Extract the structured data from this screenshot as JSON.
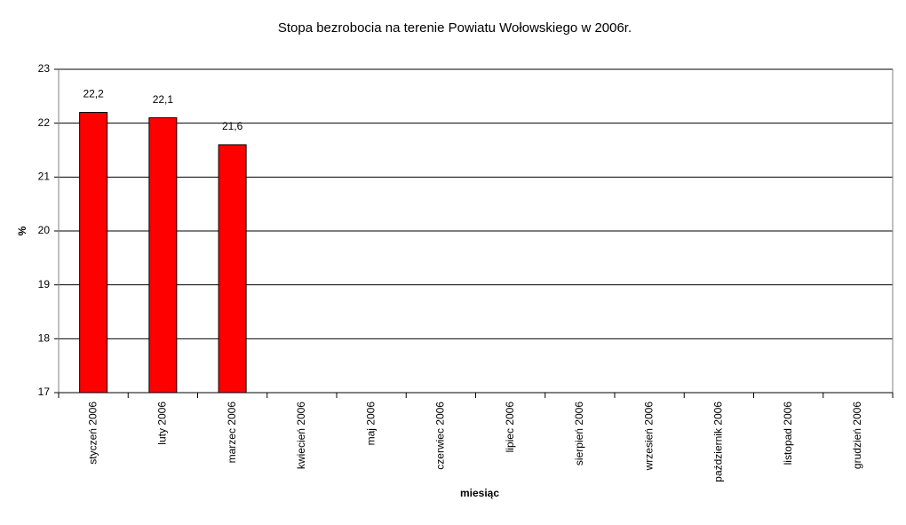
{
  "chart_data": {
    "type": "bar",
    "title": "Stopa bezrobocia na terenie Powiatu Wołowskiego w  2006r.",
    "x_label": "miesiąc",
    "y_label": "%",
    "categories": [
      "styczeń 2006",
      "luty 2006",
      "marzec 2006",
      "kwiecień 2006",
      "maj 2006",
      "czerwiec 2006",
      "lipiec 2006",
      "sierpień 2006",
      "wrzesień 2006",
      "październik 2006",
      "listopad 2006",
      "grudzień 2006"
    ],
    "values": [
      22.2,
      22.1,
      21.6,
      null,
      null,
      null,
      null,
      null,
      null,
      null,
      null,
      null
    ],
    "value_labels": [
      "22,2",
      "22,1",
      "21,6",
      null,
      null,
      null,
      null,
      null,
      null,
      null,
      null,
      null
    ],
    "color": "#ff0000",
    "ylim": [
      17,
      23
    ],
    "yticks": [
      17,
      18,
      19,
      20,
      21,
      22,
      23
    ],
    "grid": true
  }
}
